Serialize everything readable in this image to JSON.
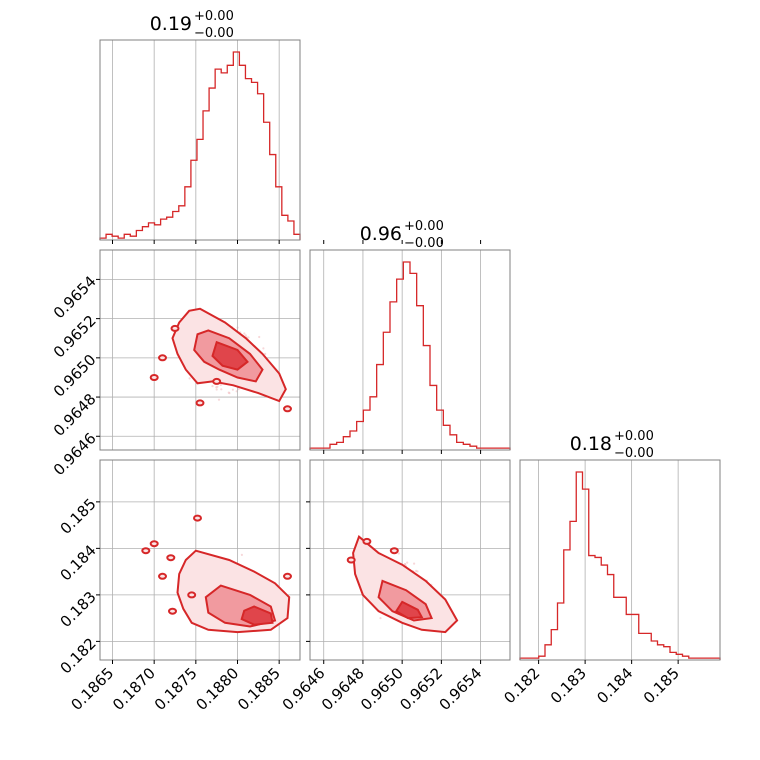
{
  "chart_data": {
    "type": "corner",
    "color": "#d62728",
    "grid": true,
    "params": [
      {
        "title_value": "0.19",
        "upper": "+0.00",
        "lower": "−0.00",
        "range": [
          0.18635,
          0.18875
        ],
        "ticks": [
          0.1865,
          0.187,
          0.1875,
          0.188,
          0.1885
        ],
        "tick_labels": [
          "0.1865",
          "0.1870",
          "0.1875",
          "0.1880",
          "0.1885"
        ],
        "hist": [
          1,
          3,
          2,
          1,
          3,
          2,
          5,
          7,
          9,
          8,
          11,
          12,
          15,
          18,
          28,
          42,
          53,
          68,
          80,
          90,
          88,
          92,
          99,
          92,
          85,
          83,
          77,
          62,
          45,
          28,
          13,
          10,
          3
        ]
      },
      {
        "title_value": "0.96",
        "upper": "+0.00",
        "lower": "−0.00",
        "range": [
          0.96453,
          0.96555
        ],
        "ticks": [
          0.9646,
          0.9648,
          0.965,
          0.9652,
          0.9654
        ],
        "tick_labels": [
          "0.9646",
          "0.9648",
          "0.9650",
          "0.9652",
          "0.9654"
        ],
        "hist": [
          1,
          1,
          1,
          3,
          4,
          7,
          10,
          15,
          21,
          28,
          45,
          62,
          78,
          90,
          99,
          93,
          76,
          55,
          34,
          21,
          13,
          8,
          4,
          3,
          2,
          1,
          1,
          1,
          1,
          1
        ]
      },
      {
        "title_value": "0.18",
        "upper": "+0.00",
        "lower": "−0.00",
        "range": [
          0.1816,
          0.1859
        ],
        "ticks": [
          0.182,
          0.183,
          0.184,
          0.185
        ],
        "tick_labels": [
          "0.182",
          "0.183",
          "0.184",
          "0.185"
        ],
        "hist": [
          1,
          1,
          1,
          2,
          8,
          16,
          30,
          58,
          73,
          99,
          90,
          55,
          54,
          50,
          45,
          33,
          33,
          24,
          24,
          14,
          14,
          10,
          8,
          7,
          4,
          3,
          2,
          1,
          1,
          1,
          1,
          1
        ]
      }
    ],
    "pairs": [
      {
        "x_param": 0,
        "y_param": 1,
        "levels": [
          {
            "level": "outer",
            "points": [
              [
                0.18755,
                0.96525
              ],
              [
                0.18785,
                0.96518
              ],
              [
                0.1881,
                0.9651
              ],
              [
                0.1883,
                0.96502
              ],
              [
                0.1885,
                0.96492
              ],
              [
                0.18858,
                0.96484
              ],
              [
                0.1885,
                0.96478
              ],
              [
                0.18825,
                0.96482
              ],
              [
                0.18795,
                0.96486
              ],
              [
                0.1877,
                0.96488
              ],
              [
                0.18752,
                0.96487
              ],
              [
                0.18738,
                0.96494
              ],
              [
                0.18728,
                0.96502
              ],
              [
                0.18722,
                0.9651
              ],
              [
                0.1873,
                0.96518
              ],
              [
                0.18742,
                0.96524
              ]
            ]
          },
          {
            "level": "mid",
            "points": [
              [
                0.18765,
                0.96514
              ],
              [
                0.1879,
                0.9651
              ],
              [
                0.18815,
                0.96502
              ],
              [
                0.1883,
                0.96494
              ],
              [
                0.18822,
                0.96488
              ],
              [
                0.188,
                0.9649
              ],
              [
                0.18778,
                0.96494
              ],
              [
                0.1876,
                0.96498
              ],
              [
                0.18748,
                0.96504
              ],
              [
                0.18752,
                0.96512
              ]
            ]
          },
          {
            "level": "inner",
            "points": [
              [
                0.18775,
                0.96508
              ],
              [
                0.188,
                0.96504
              ],
              [
                0.18812,
                0.96498
              ],
              [
                0.188,
                0.96494
              ],
              [
                0.18782,
                0.96496
              ],
              [
                0.1877,
                0.96501
              ]
            ]
          }
        ],
        "islands": [
          [
            0.1871,
            0.965
          ],
          [
            0.18725,
            0.96515
          ],
          [
            0.187,
            0.9649
          ],
          [
            0.18775,
            0.96488
          ],
          [
            0.1886,
            0.96474
          ],
          [
            0.18755,
            0.96477
          ]
        ]
      },
      {
        "x_param": 0,
        "y_param": 2,
        "levels": [
          {
            "level": "outer",
            "points": [
              [
                0.1875,
                0.18395
              ],
              [
                0.1879,
                0.18375
              ],
              [
                0.1882,
                0.1835
              ],
              [
                0.18845,
                0.18325
              ],
              [
                0.18862,
                0.18295
              ],
              [
                0.1886,
                0.1825
              ],
              [
                0.1884,
                0.18225
              ],
              [
                0.188,
                0.1822
              ],
              [
                0.18765,
                0.18225
              ],
              [
                0.18745,
                0.1824
              ],
              [
                0.18735,
                0.1827
              ],
              [
                0.18728,
                0.18305
              ],
              [
                0.1873,
                0.18345
              ],
              [
                0.18738,
                0.18375
              ]
            ]
          },
          {
            "level": "mid",
            "points": [
              [
                0.1878,
                0.1832
              ],
              [
                0.18815,
                0.183
              ],
              [
                0.1884,
                0.18275
              ],
              [
                0.18845,
                0.18245
              ],
              [
                0.18815,
                0.18232
              ],
              [
                0.18785,
                0.1824
              ],
              [
                0.18765,
                0.18262
              ],
              [
                0.18762,
                0.18295
              ]
            ]
          },
          {
            "level": "inner",
            "points": [
              [
                0.1882,
                0.18275
              ],
              [
                0.1884,
                0.1826
              ],
              [
                0.18842,
                0.1824
              ],
              [
                0.1882,
                0.18236
              ],
              [
                0.18805,
                0.18248
              ],
              [
                0.18808,
                0.18266
              ]
            ]
          }
        ],
        "islands": [
          [
            0.187,
            0.1841
          ],
          [
            0.1872,
            0.1838
          ],
          [
            0.1869,
            0.18395
          ],
          [
            0.1871,
            0.1834
          ],
          [
            0.18752,
            0.18465
          ],
          [
            0.1886,
            0.1834
          ],
          [
            0.18745,
            0.183
          ],
          [
            0.18722,
            0.18265
          ]
        ]
      },
      {
        "x_param": 1,
        "y_param": 2,
        "levels": [
          {
            "level": "outer",
            "points": [
              [
                0.96478,
                0.18425
              ],
              [
                0.96488,
                0.1839
              ],
              [
                0.965,
                0.18365
              ],
              [
                0.96512,
                0.1833
              ],
              [
                0.96522,
                0.1829
              ],
              [
                0.96528,
                0.18245
              ],
              [
                0.96522,
                0.1822
              ],
              [
                0.9651,
                0.18225
              ],
              [
                0.965,
                0.1824
              ],
              [
                0.96488,
                0.18265
              ],
              [
                0.9648,
                0.183
              ],
              [
                0.96476,
                0.18345
              ],
              [
                0.96475,
                0.1839
              ]
            ]
          },
          {
            "level": "mid",
            "points": [
              [
                0.9649,
                0.1833
              ],
              [
                0.96502,
                0.1831
              ],
              [
                0.96512,
                0.1828
              ],
              [
                0.96515,
                0.1825
              ],
              [
                0.96506,
                0.18245
              ],
              [
                0.96495,
                0.18265
              ],
              [
                0.96488,
                0.18295
              ]
            ]
          },
          {
            "level": "inner",
            "points": [
              [
                0.965,
                0.18285
              ],
              [
                0.96508,
                0.18268
              ],
              [
                0.9651,
                0.18252
              ],
              [
                0.96503,
                0.1825
              ],
              [
                0.96497,
                0.18265
              ]
            ]
          }
        ],
        "islands": [
          [
            0.96482,
            0.18415
          ],
          [
            0.96496,
            0.18395
          ],
          [
            0.96474,
            0.18375
          ]
        ]
      }
    ]
  }
}
